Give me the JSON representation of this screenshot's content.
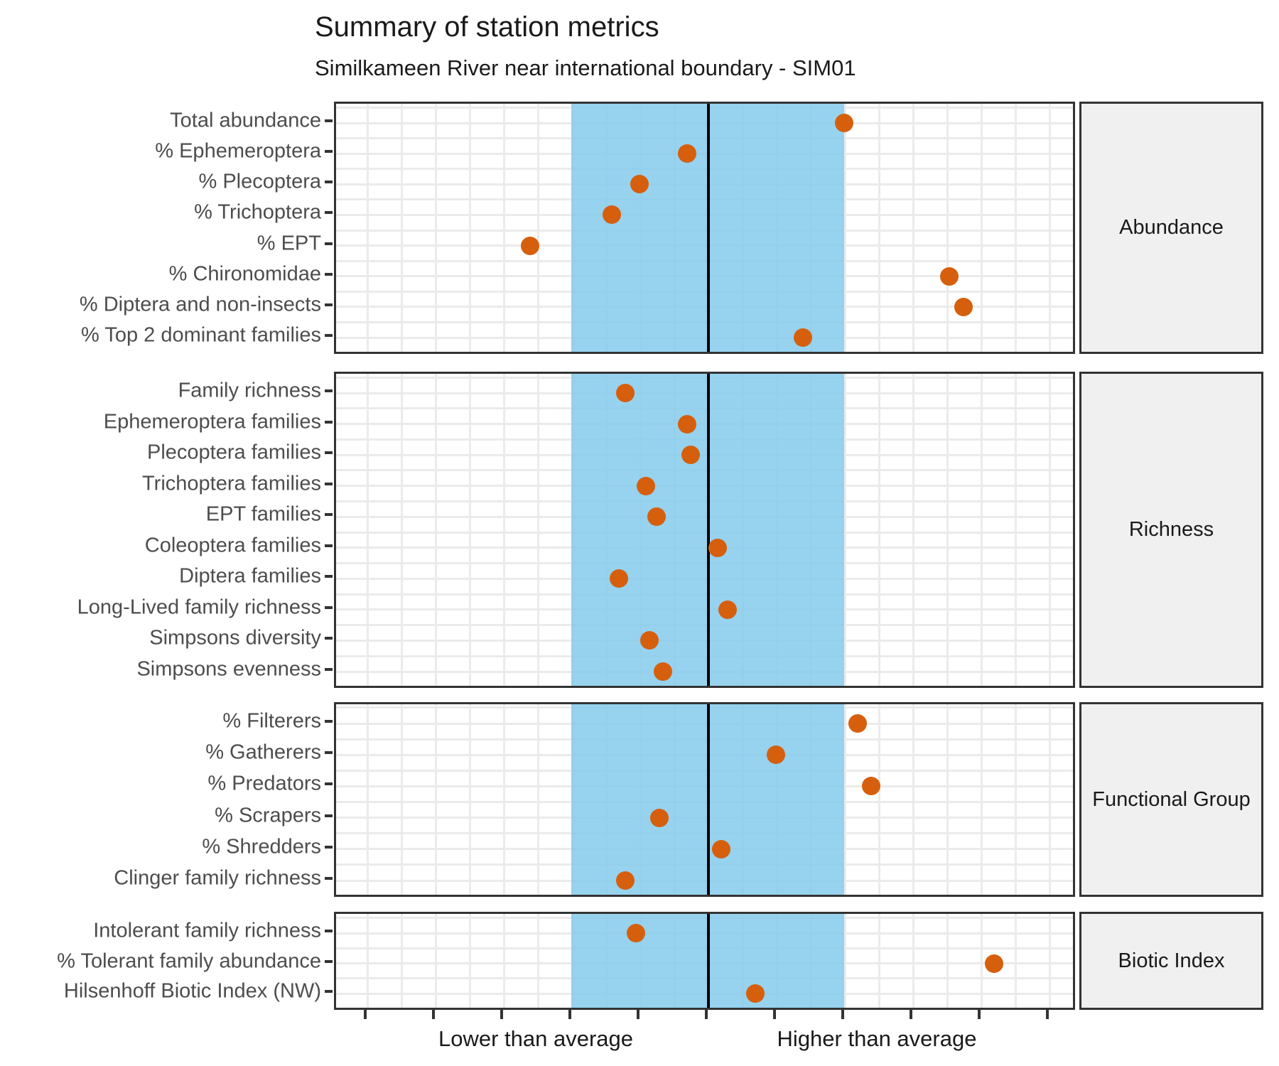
{
  "title": "Summary of station metrics",
  "subtitle": "Similkameen River near international boundary - SIM01",
  "x_axis": {
    "label_lower": "Lower than average",
    "label_higher": "Higher than average",
    "tick_values": [
      -5,
      -4,
      -3,
      -2,
      -1,
      0,
      1,
      2,
      3,
      4,
      5
    ],
    "range": [
      -5.45,
      5.45
    ],
    "average_band": [
      -2,
      2
    ],
    "center_line": 0
  },
  "colors": {
    "dot": "#D65F0D",
    "band": "rgba(133,202,236,0.85)",
    "gridline": "#EBEBEB",
    "panel_border": "#333333",
    "strip_background": "#F0F0F0",
    "axis_text": "#4D4D4D",
    "title_text": "#1a1a1a",
    "center_line": "#000000"
  },
  "chart_data": {
    "type": "scatter",
    "title": "Summary of station metrics",
    "subtitle": "Similkameen River near international boundary - SIM01",
    "xlabel_annotations": [
      "Lower than average",
      "Higher than average"
    ],
    "xlim": [
      -5.45,
      5.45
    ],
    "grid": true,
    "panels": [
      {
        "name": "Abundance",
        "metrics": [
          {
            "label": "Total abundance",
            "value": 2.0
          },
          {
            "label": "% Ephemeroptera",
            "value": -0.3
          },
          {
            "label": "% Plecoptera",
            "value": -1.0
          },
          {
            "label": "% Trichoptera",
            "value": -1.4
          },
          {
            "label": "% EPT",
            "value": -2.6
          },
          {
            "label": "% Chironomidae",
            "value": 3.55
          },
          {
            "label": "% Diptera and non-insects",
            "value": 3.75
          },
          {
            "label": "% Top 2 dominant families",
            "value": 1.4
          }
        ]
      },
      {
        "name": "Richness",
        "metrics": [
          {
            "label": "Family richness",
            "value": -1.2
          },
          {
            "label": "Ephemeroptera families",
            "value": -0.3
          },
          {
            "label": "Plecoptera families",
            "value": -0.25
          },
          {
            "label": "Trichoptera families",
            "value": -0.9
          },
          {
            "label": "EPT families",
            "value": -0.75
          },
          {
            "label": "Coleoptera families",
            "value": 0.15
          },
          {
            "label": "Diptera families",
            "value": -1.3
          },
          {
            "label": "Long-Lived family richness",
            "value": 0.3
          },
          {
            "label": "Simpsons diversity",
            "value": -0.85
          },
          {
            "label": "Simpsons evenness",
            "value": -0.65
          }
        ]
      },
      {
        "name": "Functional Group",
        "metrics": [
          {
            "label": "% Filterers",
            "value": 2.2
          },
          {
            "label": "% Gatherers",
            "value": 1.0
          },
          {
            "label": "% Predators",
            "value": 2.4
          },
          {
            "label": "% Scrapers",
            "value": -0.7
          },
          {
            "label": "% Shredders",
            "value": 0.2
          },
          {
            "label": "Clinger family richness",
            "value": -1.2
          }
        ]
      },
      {
        "name": "Biotic Index",
        "metrics": [
          {
            "label": "Intolerant family richness",
            "value": -1.05
          },
          {
            "label": "% Tolerant family abundance",
            "value": 4.2
          },
          {
            "label": "Hilsenhoff Biotic Index (NW)",
            "value": 0.7
          }
        ]
      }
    ]
  }
}
